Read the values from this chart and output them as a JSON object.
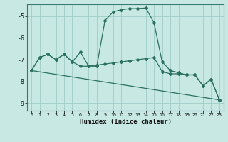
{
  "xlabel": "Humidex (Indice chaleur)",
  "bg_color": "#c8e8e4",
  "grid_color": "#a0ccc8",
  "line_color": "#2a7060",
  "xlim": [
    -0.5,
    23.5
  ],
  "ylim": [
    -9.35,
    -4.45
  ],
  "yticks": [
    -9,
    -8,
    -7,
    -6,
    -5
  ],
  "xticks": [
    0,
    1,
    2,
    3,
    4,
    5,
    6,
    7,
    8,
    9,
    10,
    11,
    12,
    13,
    14,
    15,
    16,
    17,
    18,
    19,
    20,
    21,
    22,
    23
  ],
  "line1_x": [
    0,
    1,
    2,
    3,
    4,
    5,
    6,
    7,
    8,
    9,
    10,
    11,
    12,
    13,
    14,
    15,
    16,
    17,
    18,
    19,
    20,
    21,
    22,
    23
  ],
  "line1_y": [
    -7.5,
    -6.9,
    -6.75,
    -7.0,
    -6.75,
    -7.1,
    -6.65,
    -7.3,
    -7.3,
    -5.2,
    -4.8,
    -4.7,
    -4.65,
    -4.65,
    -4.62,
    -5.3,
    -7.1,
    -7.5,
    -7.6,
    -7.7,
    -7.7,
    -8.2,
    -7.9,
    -8.85
  ],
  "line2_x": [
    0,
    1,
    2,
    3,
    4,
    5,
    6,
    7,
    8,
    9,
    10,
    11,
    12,
    13,
    14,
    15,
    16,
    17,
    18,
    19,
    20,
    21,
    22,
    23
  ],
  "line2_y": [
    -7.5,
    -6.9,
    -6.75,
    -7.0,
    -6.75,
    -7.1,
    -7.3,
    -7.3,
    -7.25,
    -7.2,
    -7.15,
    -7.1,
    -7.05,
    -7.0,
    -6.95,
    -6.9,
    -7.55,
    -7.65,
    -7.65,
    -7.7,
    -7.7,
    -8.2,
    -7.9,
    -8.85
  ],
  "line3_x": [
    0,
    23
  ],
  "line3_y": [
    -7.5,
    -8.85
  ]
}
